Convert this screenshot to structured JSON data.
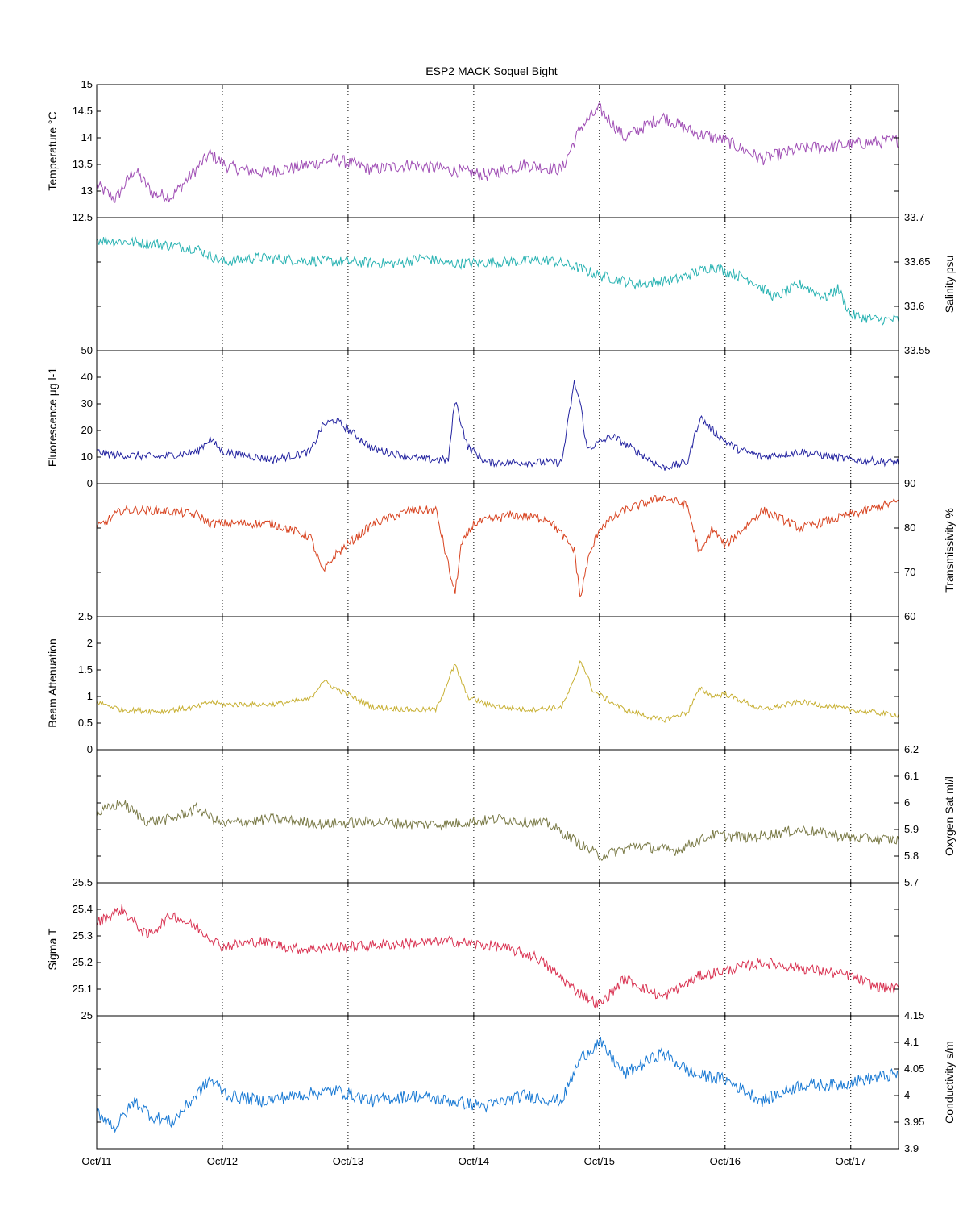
{
  "chart_data": {
    "type": "line",
    "title": "ESP2 MACK  Soquel Bight",
    "x_ticks": [
      "Oct/11",
      "Oct/12",
      "Oct/13",
      "Oct/14",
      "Oct/15",
      "Oct/16",
      "Oct/17"
    ],
    "x_range_days": [
      11,
      17.38
    ],
    "grid": "vertical dotted at each day",
    "panels": [
      {
        "id": "temperature",
        "ylabel": "Temperature °C",
        "axis_side": "left",
        "color": "#a04fb5",
        "ylim": [
          12.5,
          15
        ],
        "ticks": [
          "12.5",
          "13",
          "13.5",
          "14",
          "14.5",
          "15"
        ],
        "tick_values": [
          12.5,
          13,
          13.5,
          14,
          14.5,
          15
        ],
        "x": [
          11.0,
          11.15,
          11.3,
          11.45,
          11.6,
          11.75,
          11.9,
          12.05,
          12.3,
          12.6,
          12.9,
          13.2,
          13.5,
          13.8,
          14.1,
          14.4,
          14.7,
          14.85,
          15.0,
          15.2,
          15.5,
          15.75,
          16.0,
          16.3,
          16.6,
          16.9,
          17.1,
          17.38
        ],
        "values": [
          13.1,
          12.85,
          13.4,
          12.95,
          12.9,
          13.3,
          13.7,
          13.45,
          13.35,
          13.45,
          13.6,
          13.4,
          13.5,
          13.4,
          13.3,
          13.5,
          13.4,
          14.2,
          14.55,
          14.0,
          14.4,
          14.1,
          13.95,
          13.6,
          13.8,
          13.85,
          13.9,
          13.95
        ],
        "noise": 0.12
      },
      {
        "id": "salinity",
        "ylabel": "Salinity psu",
        "axis_side": "right",
        "color": "#2ab3b3",
        "ylim": [
          33.55,
          33.7
        ],
        "ticks": [
          "33.55",
          "33.6",
          "33.65",
          "33.7"
        ],
        "tick_values": [
          33.55,
          33.6,
          33.65,
          33.7
        ],
        "x": [
          11.0,
          11.5,
          11.8,
          12.0,
          12.3,
          12.6,
          13.0,
          13.4,
          13.6,
          13.8,
          14.2,
          14.6,
          14.8,
          15.0,
          15.3,
          15.6,
          15.9,
          16.2,
          16.4,
          16.6,
          16.8,
          16.9,
          17.0,
          17.2,
          17.38
        ],
        "values": [
          33.675,
          33.67,
          33.665,
          33.65,
          33.655,
          33.652,
          33.65,
          33.648,
          33.655,
          33.648,
          33.65,
          33.652,
          33.645,
          33.635,
          33.625,
          33.63,
          33.645,
          33.63,
          33.61,
          33.625,
          33.61,
          33.62,
          33.59,
          33.585,
          33.585
        ],
        "noise": 0.006
      },
      {
        "id": "fluorescence",
        "ylabel": "Fluorescence µg l-1",
        "axis_side": "left",
        "color": "#2323a0",
        "ylim": [
          0,
          50
        ],
        "ticks": [
          "0",
          "10",
          "20",
          "30",
          "40",
          "50"
        ],
        "tick_values": [
          0,
          10,
          20,
          30,
          40,
          50
        ],
        "x": [
          11.0,
          11.1,
          11.5,
          11.8,
          11.9,
          12.0,
          12.4,
          12.7,
          12.8,
          12.9,
          13.2,
          13.6,
          13.8,
          13.85,
          13.95,
          14.1,
          14.7,
          14.8,
          14.85,
          14.9,
          15.1,
          15.3,
          15.5,
          15.7,
          15.8,
          15.9,
          16.0,
          16.1,
          16.3,
          16.6,
          17.0,
          17.38
        ],
        "values": [
          12,
          11,
          10,
          12,
          17,
          12,
          9,
          12,
          22,
          24,
          13,
          9,
          9,
          32,
          14,
          8,
          8,
          38,
          30,
          13,
          18,
          12,
          6,
          8,
          25,
          20,
          16,
          13,
          10,
          12,
          9,
          8
        ],
        "noise": 1.5
      },
      {
        "id": "transmissivity",
        "ylabel": "Transmissivity %",
        "axis_side": "right",
        "color": "#d84421",
        "ylim": [
          60,
          90
        ],
        "ticks": [
          "60",
          "70",
          "80",
          "90"
        ],
        "tick_values": [
          60,
          70,
          80,
          90
        ],
        "x": [
          11.0,
          11.2,
          11.5,
          11.8,
          11.9,
          12.0,
          12.4,
          12.7,
          12.8,
          12.9,
          13.2,
          13.5,
          13.7,
          13.85,
          13.9,
          14.0,
          14.3,
          14.6,
          14.8,
          14.85,
          14.9,
          15.0,
          15.2,
          15.5,
          15.7,
          15.8,
          15.9,
          16.0,
          16.3,
          16.6,
          17.0,
          17.38
        ],
        "values": [
          80,
          84,
          84,
          83,
          81,
          81,
          81,
          78,
          70,
          74,
          81,
          84,
          84,
          65,
          76,
          81,
          83,
          82,
          75,
          64,
          72,
          80,
          84,
          87,
          85,
          74,
          80,
          76,
          84,
          80,
          83,
          86
        ],
        "noise": 1.0
      },
      {
        "id": "beam",
        "ylabel": "Beam Attenuation",
        "axis_side": "left",
        "color": "#c8b033",
        "ylim": [
          0,
          2.5
        ],
        "ticks": [
          "0",
          "0.5",
          "1",
          "1.5",
          "2",
          "2.5"
        ],
        "tick_values": [
          0,
          0.5,
          1,
          1.5,
          2,
          2.5
        ],
        "x": [
          11.0,
          11.2,
          11.5,
          11.8,
          11.9,
          12.0,
          12.4,
          12.7,
          12.8,
          12.9,
          13.2,
          13.5,
          13.7,
          13.85,
          13.95,
          14.1,
          14.4,
          14.7,
          14.8,
          14.85,
          14.95,
          15.2,
          15.5,
          15.7,
          15.8,
          15.9,
          16.0,
          16.3,
          16.6,
          17.0,
          17.38
        ],
        "values": [
          0.9,
          0.75,
          0.72,
          0.8,
          0.9,
          0.85,
          0.85,
          0.95,
          1.3,
          1.15,
          0.8,
          0.75,
          0.75,
          1.6,
          1.0,
          0.85,
          0.75,
          0.8,
          1.3,
          1.7,
          1.1,
          0.75,
          0.55,
          0.7,
          1.15,
          1.0,
          1.05,
          0.75,
          0.9,
          0.75,
          0.65
        ],
        "noise": 0.05
      },
      {
        "id": "oxygen",
        "ylabel": "Oxygen Sat ml/l",
        "axis_side": "right",
        "color": "#7a7a47",
        "ylim": [
          5.7,
          6.2
        ],
        "ticks": [
          "5.7",
          "5.8",
          "5.9",
          "6",
          "6.1",
          "6.2"
        ],
        "tick_values": [
          5.7,
          5.8,
          5.9,
          6.0,
          6.1,
          6.2
        ],
        "x": [
          11.0,
          11.2,
          11.4,
          11.6,
          11.8,
          12.0,
          12.4,
          12.8,
          13.2,
          13.5,
          13.8,
          14.2,
          14.6,
          14.8,
          15.0,
          15.3,
          15.6,
          15.9,
          16.2,
          16.6,
          17.0,
          17.38
        ],
        "values": [
          5.96,
          6.0,
          5.93,
          5.94,
          5.98,
          5.92,
          5.94,
          5.92,
          5.93,
          5.92,
          5.92,
          5.94,
          5.92,
          5.86,
          5.8,
          5.84,
          5.82,
          5.88,
          5.87,
          5.9,
          5.87,
          5.86
        ],
        "noise": 0.02
      },
      {
        "id": "sigma",
        "ylabel": "Sigma T",
        "axis_side": "left",
        "color": "#d93352",
        "ylim": [
          25,
          25.5
        ],
        "ticks": [
          "25",
          "25.1",
          "25.2",
          "25.3",
          "25.4",
          "25.5"
        ],
        "tick_values": [
          25.0,
          25.1,
          25.2,
          25.3,
          25.4,
          25.5
        ],
        "x": [
          11.0,
          11.2,
          11.4,
          11.6,
          11.8,
          12.0,
          12.3,
          12.6,
          13.0,
          13.4,
          13.8,
          14.2,
          14.5,
          14.8,
          15.0,
          15.2,
          15.5,
          15.8,
          16.0,
          16.3,
          16.6,
          17.0,
          17.2,
          17.38
        ],
        "values": [
          25.35,
          25.4,
          25.3,
          25.38,
          25.33,
          25.26,
          25.28,
          25.25,
          25.26,
          25.27,
          25.28,
          25.26,
          25.22,
          25.1,
          25.04,
          25.14,
          25.07,
          25.15,
          25.17,
          25.2,
          25.18,
          25.15,
          25.11,
          25.1
        ],
        "noise": 0.02
      },
      {
        "id": "conductivity",
        "ylabel": "Conductivity s/m",
        "axis_side": "right",
        "color": "#1a7ad4",
        "ylim": [
          3.9,
          4.15
        ],
        "ticks": [
          "3.9",
          "3.95",
          "4",
          "4.05",
          "4.1",
          "4.15"
        ],
        "tick_values": [
          3.9,
          3.95,
          4.0,
          4.05,
          4.1,
          4.15
        ],
        "x": [
          11.0,
          11.15,
          11.3,
          11.45,
          11.6,
          11.75,
          11.9,
          12.05,
          12.3,
          12.6,
          12.9,
          13.2,
          13.5,
          13.8,
          14.1,
          14.4,
          14.7,
          14.85,
          15.0,
          15.2,
          15.5,
          15.75,
          16.0,
          16.3,
          16.6,
          16.9,
          17.1,
          17.38
        ],
        "values": [
          3.97,
          3.94,
          3.99,
          3.96,
          3.95,
          3.99,
          4.03,
          4.0,
          3.99,
          4.0,
          4.01,
          3.99,
          4.0,
          3.99,
          3.98,
          4.0,
          3.99,
          4.07,
          4.1,
          4.04,
          4.08,
          4.04,
          4.03,
          3.99,
          4.02,
          4.02,
          4.03,
          4.04
        ],
        "noise": 0.012
      }
    ]
  }
}
